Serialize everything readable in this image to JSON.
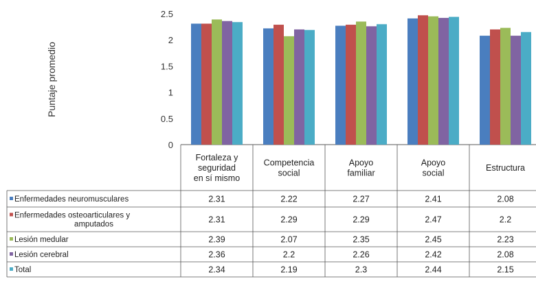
{
  "chart_data": {
    "type": "bar",
    "ylabel": "Puntaje promedio",
    "xlabel": "",
    "ylim": [
      0,
      2.5
    ],
    "yticks": [
      "0",
      "0.5",
      "1",
      "1.5",
      "2",
      "2.5"
    ],
    "grid": false,
    "legend": "data-table-left",
    "categories": [
      [
        "Fortaleza y",
        "seguridad",
        "en sí mismo"
      ],
      [
        "Competencia",
        "social"
      ],
      [
        "Apoyo",
        "familiar"
      ],
      [
        "Apoyo",
        "social"
      ],
      [
        "Estructura"
      ]
    ],
    "series": [
      {
        "name": "Enfermedades neuromusculares",
        "legend_lines": [
          "Enfermedades neuromusculares"
        ],
        "color": "#4a7ebf",
        "values": [
          2.31,
          2.22,
          2.27,
          2.41,
          2.08
        ],
        "labels": [
          "2.31",
          "2.22",
          "2.27",
          "2.41",
          "2.08"
        ]
      },
      {
        "name": "Enfermedades osteoarticulares y amputados",
        "legend_lines": [
          "Enfermedades osteoarticulares y",
          "amputados"
        ],
        "color": "#c0504d",
        "values": [
          2.31,
          2.29,
          2.29,
          2.47,
          2.2
        ],
        "labels": [
          "2.31",
          "2.29",
          "2.29",
          "2.47",
          "2.2"
        ]
      },
      {
        "name": "Lesión medular",
        "legend_lines": [
          "Lesión medular"
        ],
        "color": "#9bbb59",
        "values": [
          2.39,
          2.07,
          2.35,
          2.45,
          2.23
        ],
        "labels": [
          "2.39",
          "2.07",
          "2.35",
          "2.45",
          "2.23"
        ]
      },
      {
        "name": "Lesión cerebral",
        "legend_lines": [
          "Lesión cerebral"
        ],
        "color": "#8064a2",
        "values": [
          2.36,
          2.2,
          2.26,
          2.42,
          2.08
        ],
        "labels": [
          "2.36",
          "2.2",
          "2.26",
          "2.42",
          "2.08"
        ]
      },
      {
        "name": "Total",
        "legend_lines": [
          "Total"
        ],
        "color": "#4bacc6",
        "values": [
          2.34,
          2.19,
          2.3,
          2.44,
          2.15
        ],
        "labels": [
          "2.34",
          "2.19",
          "2.3",
          "2.44",
          "2.15"
        ]
      }
    ]
  }
}
